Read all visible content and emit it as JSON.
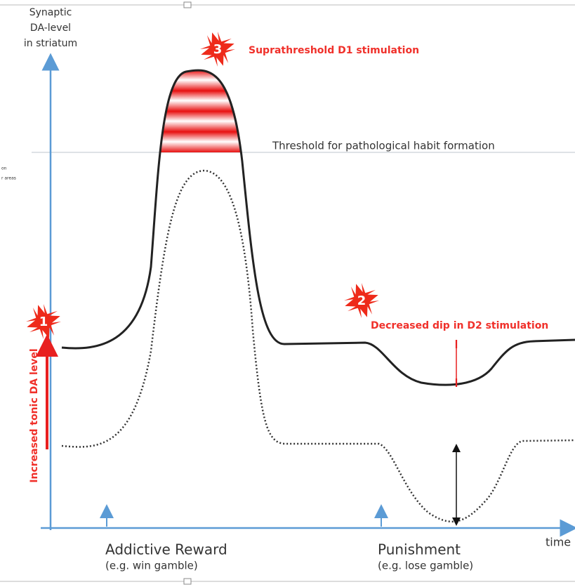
{
  "axis": {
    "y_label": [
      "Synaptic",
      "DA-level",
      "in striatum"
    ],
    "x_label": "time"
  },
  "threshold": "Threshold for pathological habit formation",
  "cut_text": [
    "on",
    "r areas"
  ],
  "badges": [
    {
      "number": "1",
      "label": "Increased tonic DA level"
    },
    {
      "number": "2",
      "label": "Decreased dip in D2 stimulation"
    },
    {
      "number": "3",
      "label": "Suprathreshold D1 stimulation"
    }
  ],
  "events": [
    {
      "title": "Addictive Reward",
      "note": "(e.g. win gamble)"
    },
    {
      "title": "Punishment",
      "note": "(e.g. lose gamble)"
    }
  ]
}
